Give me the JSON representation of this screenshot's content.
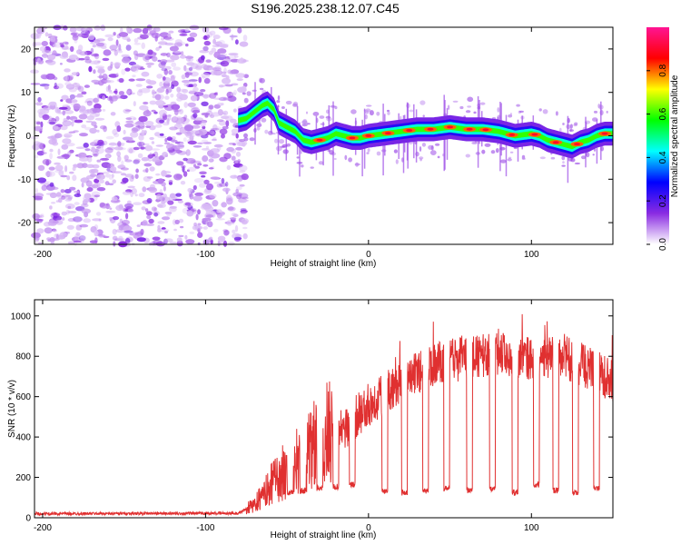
{
  "title": "S196.2025.238.12.07.C45",
  "chart_data": [
    {
      "type": "heatmap",
      "title": "S196.2025.238.12.07.C45",
      "xlabel": "Height of straight line (km)",
      "ylabel": "Frequency (Hz)",
      "xlim": [
        -205,
        150
      ],
      "ylim": [
        -25,
        25
      ],
      "x_ticks": [
        -200,
        -100,
        0,
        100
      ],
      "y_ticks": [
        -20,
        -10,
        0,
        10,
        20
      ],
      "noise_region_x": [
        -205,
        -75
      ],
      "ridge": {
        "x": [
          -80,
          -75,
          -70,
          -65,
          -62,
          -58,
          -55,
          -50,
          -45,
          -40,
          -35,
          -30,
          -25,
          -20,
          -15,
          -10,
          -5,
          0,
          10,
          20,
          30,
          40,
          50,
          60,
          70,
          80,
          90,
          100,
          105,
          110,
          115,
          120,
          125,
          130,
          135,
          140,
          145,
          150
        ],
        "y": [
          3.5,
          4,
          5.5,
          7,
          7.5,
          6,
          3,
          2,
          1,
          -1,
          -1.5,
          -1,
          -0.5,
          0.5,
          0,
          -0.5,
          -0.5,
          0,
          0.5,
          1,
          1.5,
          1.5,
          2,
          1.5,
          1.5,
          1,
          0,
          0.5,
          0,
          -1,
          -1.5,
          -2,
          -2.5,
          -1.5,
          -1,
          0,
          0.5,
          0.5
        ]
      },
      "colorbar": {
        "label": "Normalized spectral amplitude",
        "range": [
          0,
          1
        ],
        "ticks": [
          "0.0",
          "0.2",
          "0.4",
          "0.6",
          "0.8"
        ],
        "colors": [
          "#ffffff",
          "#8a2be2",
          "#0000ff",
          "#00ffff",
          "#00ff00",
          "#ffff00",
          "#ff0000",
          "#ff1493"
        ]
      }
    },
    {
      "type": "line",
      "xlabel": "Height of straight line (km)",
      "ylabel": "SNR (10 * v/v)",
      "xlim": [
        -205,
        150
      ],
      "ylim": [
        0,
        1080
      ],
      "x_ticks": [
        -200,
        -100,
        0,
        100
      ],
      "y_ticks": [
        0,
        200,
        400,
        600,
        800,
        1000
      ],
      "color": "#e03030",
      "series_profile": {
        "x": [
          -205,
          -80,
          -70,
          -60,
          -50,
          -40,
          -30,
          -20,
          -10,
          0,
          10,
          20,
          30,
          40,
          50,
          60,
          70,
          80,
          90,
          100,
          110,
          120,
          130,
          140,
          150
        ],
        "y": [
          20,
          22,
          60,
          150,
          220,
          270,
          350,
          400,
          480,
          560,
          620,
          680,
          720,
          760,
          780,
          790,
          800,
          820,
          800,
          780,
          790,
          800,
          760,
          720,
          680
        ]
      },
      "dips_x": [
        -48,
        -40,
        -30,
        -20,
        -10,
        10,
        22,
        35,
        48,
        62,
        76,
        90,
        103,
        115,
        127,
        140
      ],
      "dip_depths_y": [
        110,
        120,
        130,
        140,
        150,
        120,
        110,
        120,
        130,
        120,
        130,
        110,
        150,
        120,
        110,
        130
      ]
    }
  ]
}
